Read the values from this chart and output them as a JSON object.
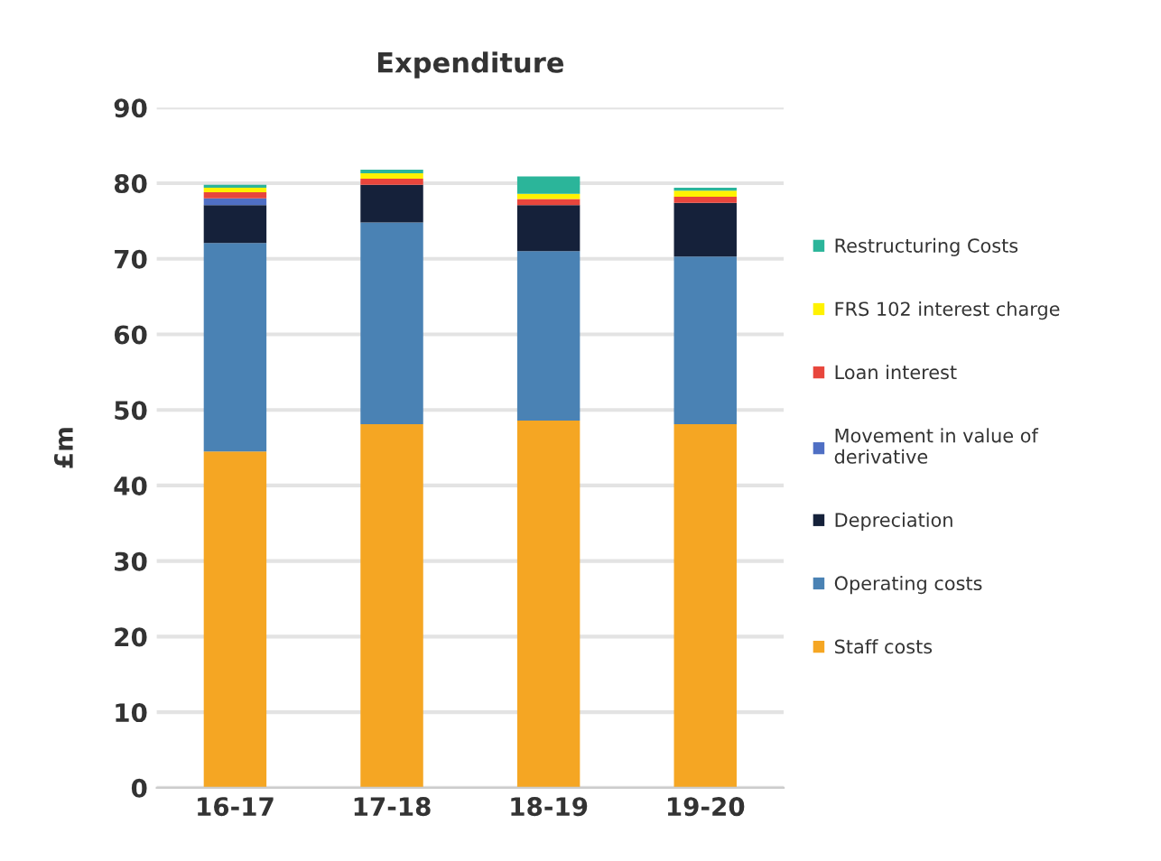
{
  "chart_data": {
    "type": "bar",
    "stacked": true,
    "title": "Expenditure",
    "ylabel": "£m",
    "categories": [
      "16-17",
      "17-18",
      "18-19",
      "19-20"
    ],
    "series": [
      {
        "name": "Staff costs",
        "color": "#f5a623",
        "values": [
          44.5,
          48.1,
          48.6,
          48.1
        ]
      },
      {
        "name": "Operating costs",
        "color": "#4a82b4",
        "values": [
          27.6,
          26.7,
          22.4,
          22.2
        ]
      },
      {
        "name": "Depreciation",
        "color": "#15213a",
        "values": [
          5.0,
          5.0,
          6.1,
          7.1
        ]
      },
      {
        "name": "Movement in value of\nderivative",
        "color": "#4f6fc4",
        "values": [
          0.9,
          0,
          0,
          0
        ]
      },
      {
        "name": "Loan interest",
        "color": "#e8463c",
        "values": [
          0.8,
          0.8,
          0.8,
          0.8
        ]
      },
      {
        "name": "FRS 102 interest charge",
        "color": "#fff200",
        "values": [
          0.6,
          0.7,
          0.7,
          0.8
        ]
      },
      {
        "name": "Restructuring Costs",
        "color": "#2bb59a",
        "values": [
          0.4,
          0.5,
          2.3,
          0.4
        ]
      }
    ],
    "ylim": [
      0,
      90
    ],
    "yticks": [
      0,
      10,
      20,
      30,
      40,
      50,
      60,
      70,
      80,
      90
    ],
    "grid": "y",
    "legend": "right"
  }
}
